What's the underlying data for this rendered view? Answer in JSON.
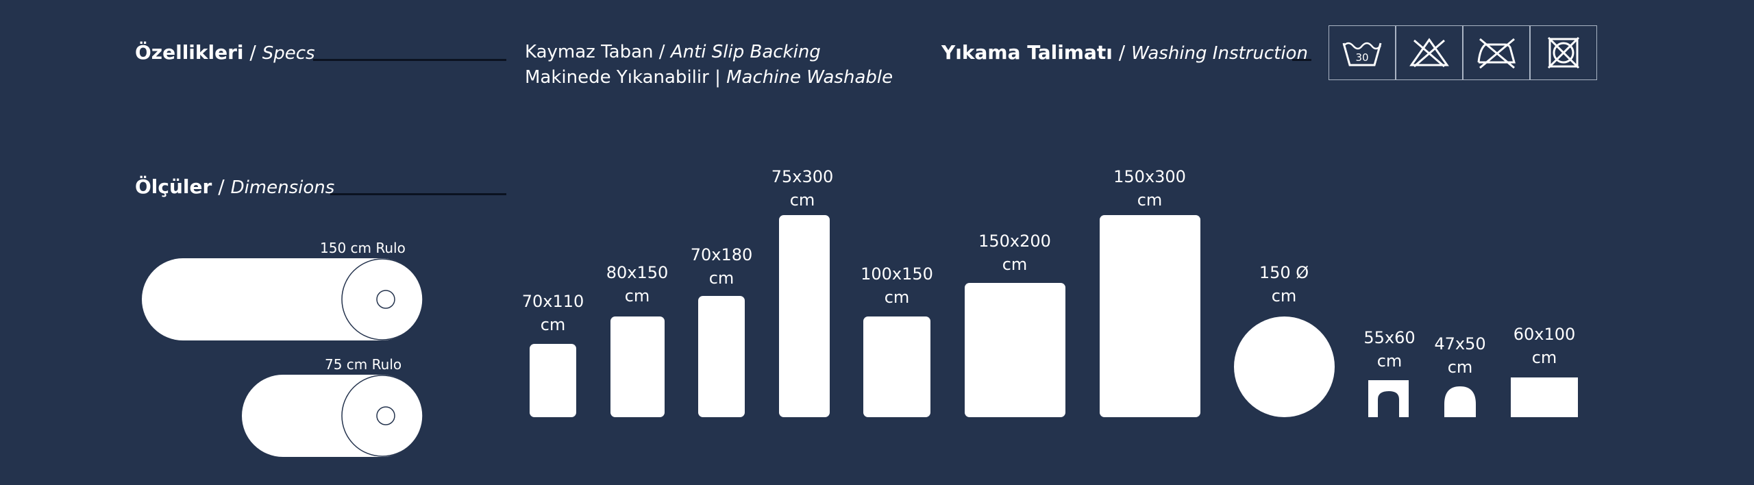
{
  "specs": {
    "title_tr": "Özellikleri",
    "title_sep": " / ",
    "title_en": "Specs",
    "lines": [
      {
        "tr": "Kaymaz Taban",
        "sep": " / ",
        "en": "Anti Slip Backing"
      },
      {
        "tr": "Makinede Yıkanabilir",
        "sep": " | ",
        "en": "Machine Washable"
      }
    ]
  },
  "washing": {
    "title_tr": "Yıkama Talimatı",
    "title_sep": " / ",
    "title_en": "Washing Instruction",
    "icons": [
      {
        "name": "wash-30-icon",
        "text": "30"
      },
      {
        "name": "do-not-bleach-icon"
      },
      {
        "name": "do-not-iron-icon"
      },
      {
        "name": "do-not-tumble-dry-icon"
      }
    ]
  },
  "dimensions": {
    "title_tr": "Ölçüler",
    "title_sep": " / ",
    "title_en": "Dimensions",
    "rolls": [
      {
        "label": "150 cm Rulo"
      },
      {
        "label": "75 cm Rulo"
      }
    ],
    "sizes": [
      {
        "size": "70x110",
        "unit": "cm",
        "shape": "rect"
      },
      {
        "size": "80x150",
        "unit": "cm",
        "shape": "rect"
      },
      {
        "size": "70x180",
        "unit": "cm",
        "shape": "rect"
      },
      {
        "size": "75x300",
        "unit": "cm",
        "shape": "rect"
      },
      {
        "size": "100x150",
        "unit": "cm",
        "shape": "rect"
      },
      {
        "size": "150x200",
        "unit": "cm",
        "shape": "rect"
      },
      {
        "size": "150x300",
        "unit": "cm",
        "shape": "rect"
      },
      {
        "size": "150 Ø",
        "unit": "cm",
        "shape": "circle"
      },
      {
        "size": "55x60",
        "unit": "cm",
        "shape": "toilet"
      },
      {
        "size": "47x50",
        "unit": "cm",
        "shape": "lid"
      },
      {
        "size": "60x100",
        "unit": "cm",
        "shape": "rect-flat"
      }
    ]
  },
  "colors": {
    "background": "#24334d",
    "foreground": "#ffffff"
  }
}
